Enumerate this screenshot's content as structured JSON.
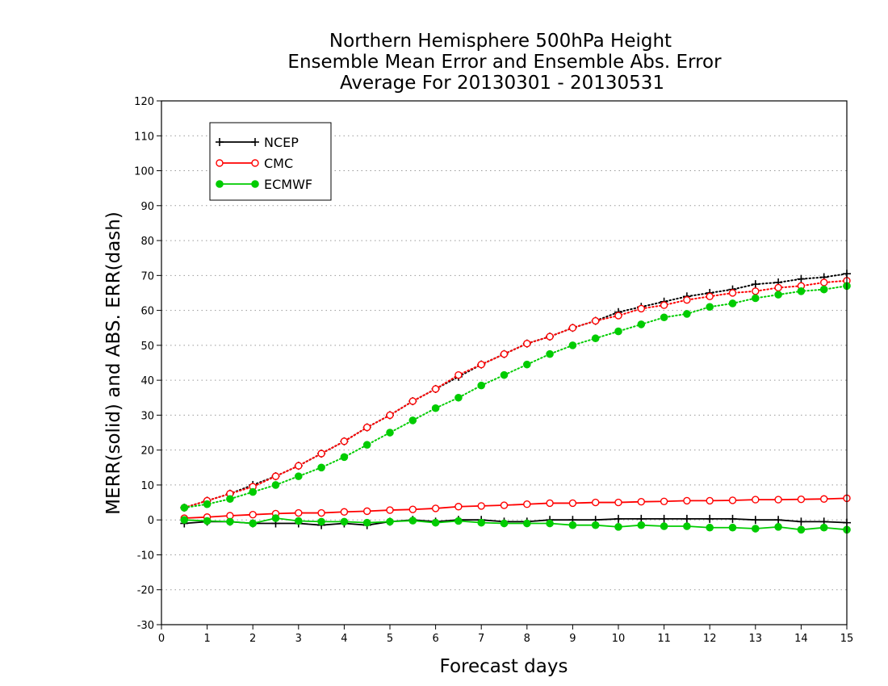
{
  "chart_data": {
    "type": "line",
    "title": [
      "Northern Hemisphere 500hPa Height",
      "Ensemble Mean Error and Ensemble Abs. Error",
      "Average For 20130301 - 20130531"
    ],
    "xlabel": "Forecast days",
    "ylabel": "MERR(solid) and ABS. ERR(dash)",
    "xlim": [
      0,
      15
    ],
    "ylim": [
      -30,
      120
    ],
    "xticks": [
      0,
      1,
      2,
      3,
      4,
      5,
      6,
      7,
      8,
      9,
      10,
      11,
      12,
      13,
      14,
      15
    ],
    "yticks": [
      -30,
      -20,
      -10,
      0,
      10,
      20,
      30,
      40,
      50,
      60,
      70,
      80,
      90,
      100,
      110,
      120
    ],
    "grid": "horizontal dotted",
    "legend_position": "top-left",
    "x": [
      0.5,
      1,
      1.5,
      2,
      2.5,
      3,
      3.5,
      4,
      4.5,
      5,
      5.5,
      6,
      6.5,
      7,
      7.5,
      8,
      8.5,
      9,
      9.5,
      10,
      10.5,
      11,
      11.5,
      12,
      12.5,
      13,
      13.5,
      14,
      14.5,
      15
    ],
    "series": [
      {
        "name": "NCEP",
        "color": "#000000",
        "marker": "plus",
        "mean_error": [
          -1,
          -0.5,
          -0.5,
          -1,
          -1,
          -1,
          -1.5,
          -1,
          -1.5,
          -0.5,
          0,
          -0.5,
          0,
          0,
          -0.5,
          -0.5,
          0,
          0,
          0,
          0.3,
          0.3,
          0.3,
          0.3,
          0.3,
          0.3,
          0,
          0,
          -0.5,
          -0.5,
          -0.8
        ],
        "abs_error": [
          3.5,
          5.5,
          7.5,
          10,
          12.5,
          15.5,
          19,
          22.5,
          26.5,
          30,
          34,
          37.5,
          41,
          44.5,
          47.5,
          50.5,
          52.5,
          55,
          57,
          59.5,
          61,
          62.5,
          64,
          65,
          66,
          67.5,
          68,
          69,
          69.5,
          70.5
        ]
      },
      {
        "name": "CMC",
        "color": "#ff0000",
        "marker": "open-circle",
        "mean_error": [
          0.5,
          0.8,
          1.2,
          1.5,
          1.8,
          2,
          2,
          2.3,
          2.5,
          2.8,
          3,
          3.3,
          3.8,
          4,
          4.2,
          4.5,
          4.8,
          4.8,
          5,
          5,
          5.2,
          5.3,
          5.5,
          5.5,
          5.6,
          5.8,
          5.8,
          5.9,
          6,
          6.2
        ],
        "abs_error": [
          3.5,
          5.5,
          7.5,
          9.5,
          12.5,
          15.5,
          19,
          22.5,
          26.5,
          30,
          34,
          37.5,
          41.5,
          44.5,
          47.5,
          50.5,
          52.5,
          55,
          57,
          58.5,
          60.5,
          61.5,
          63,
          64,
          65,
          65.5,
          66.5,
          67,
          68,
          68.5
        ]
      },
      {
        "name": "ECMWF",
        "color": "#00cc00",
        "marker": "filled-circle",
        "mean_error": [
          0,
          -0.3,
          -0.5,
          -1,
          0.5,
          -0.3,
          -0.5,
          -0.5,
          -0.8,
          -0.5,
          -0.2,
          -0.8,
          -0.3,
          -0.8,
          -1,
          -1,
          -1,
          -1.5,
          -1.5,
          -2,
          -1.5,
          -1.8,
          -1.8,
          -2.2,
          -2.2,
          -2.5,
          -2,
          -2.8,
          -2.2,
          -2.8
        ],
        "abs_error": [
          3.5,
          4.5,
          6,
          8,
          10,
          12.5,
          15,
          18,
          21.5,
          25,
          28.5,
          32,
          35,
          38.5,
          41.5,
          44.5,
          47.5,
          50,
          52,
          54,
          56,
          58,
          59,
          61,
          62,
          63.5,
          64.5,
          65.5,
          66,
          67
        ]
      }
    ]
  }
}
